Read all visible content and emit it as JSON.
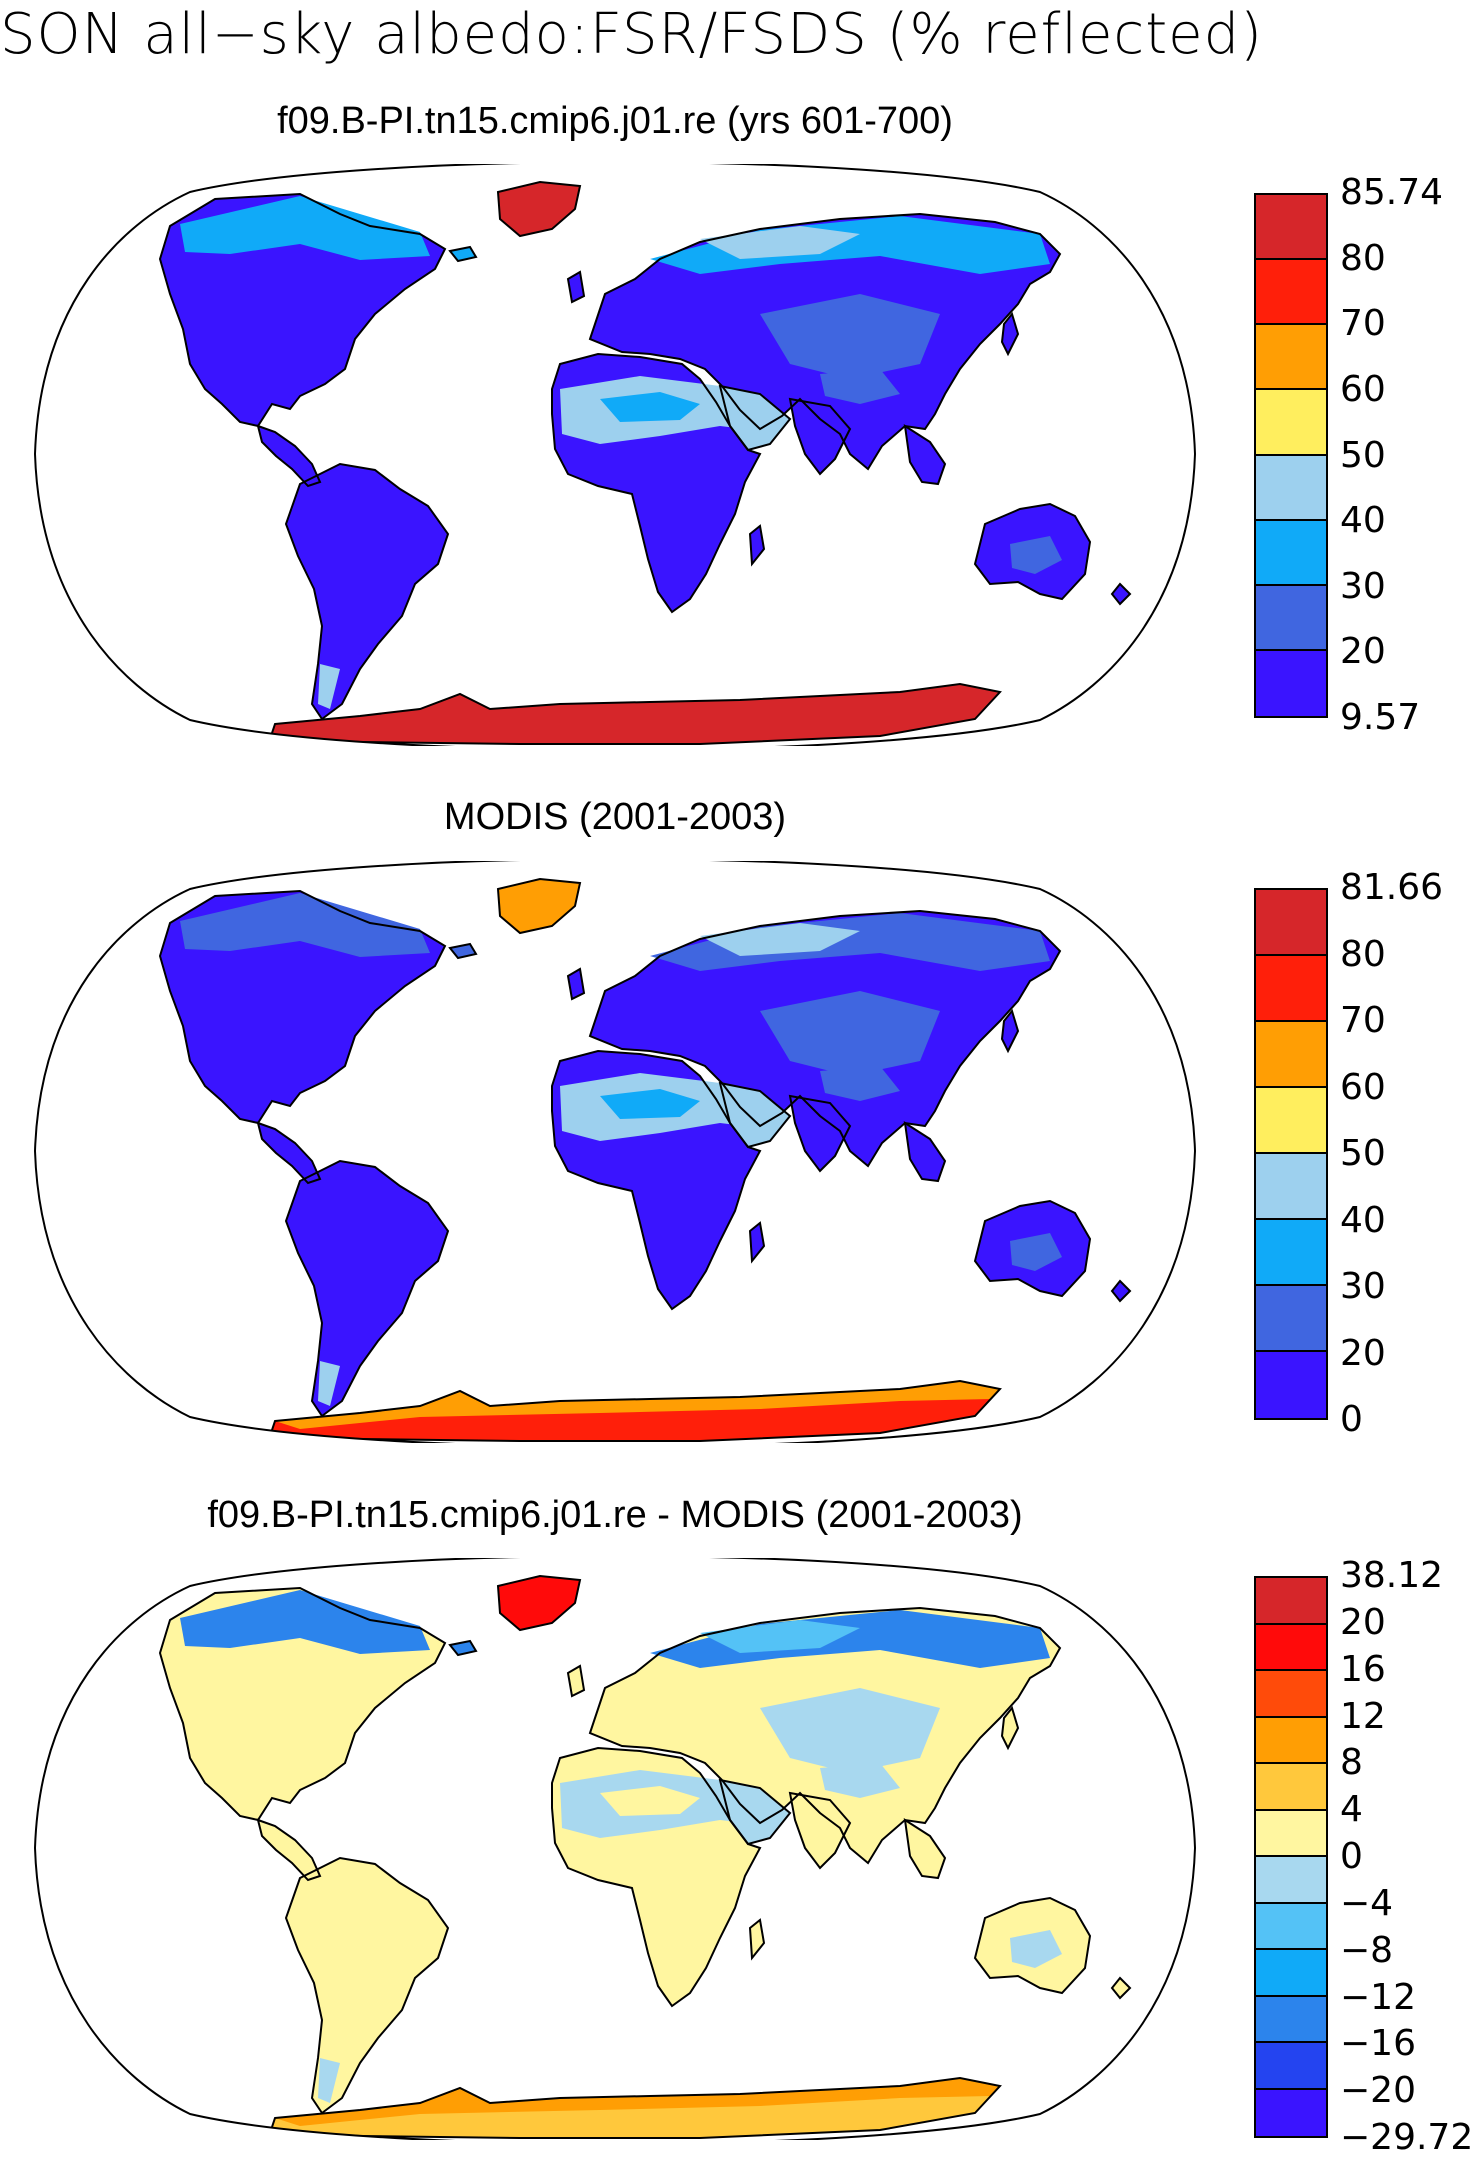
{
  "figure": {
    "title": "SON all−sky albedo:FSR/FSDS (% reflected)"
  },
  "panels": [
    {
      "title": "f09.B-PI.tn15.cmip6.j01.re (yrs 601-700)",
      "colorbar": {
        "labels": [
          "85.74",
          "80",
          "70",
          "60",
          "50",
          "40",
          "30",
          "20",
          "9.57"
        ],
        "colors": [
          "#d6262a",
          "#ff1f0a",
          "#ff9e04",
          "#ffee5e",
          "#9dd0ee",
          "#10aaf8",
          "#4066e0",
          "#3a14ff"
        ]
      },
      "palette": {
        "land": "#3a14ff",
        "land2": "#4066e0",
        "desert": "#9dd0ee",
        "desert2": "#10aaf8",
        "arctic": "#10aaf8",
        "arctic2": "#9dd0ee",
        "greenland": "#d6262a",
        "antarctica": "#d6262a",
        "ice_edge": "#d6262a"
      }
    },
    {
      "title": "MODIS (2001-2003)",
      "colorbar": {
        "labels": [
          "81.66",
          "80",
          "70",
          "60",
          "50",
          "40",
          "30",
          "20",
          "0"
        ],
        "colors": [
          "#d6262a",
          "#ff1f0a",
          "#ff9e04",
          "#ffee5e",
          "#9dd0ee",
          "#10aaf8",
          "#4066e0",
          "#3a14ff"
        ]
      },
      "palette": {
        "land": "#3a14ff",
        "land2": "#4066e0",
        "desert": "#9dd0ee",
        "desert2": "#10aaf8",
        "arctic": "#4066e0",
        "arctic2": "#9dd0ee",
        "greenland": "#ff9e04",
        "antarctica": "#ff1f0a",
        "ice_edge": "#ff9e04"
      }
    },
    {
      "title": "f09.B-PI.tn15.cmip6.j01.re - MODIS (2001-2003)",
      "colorbar": {
        "labels": [
          "38.12",
          "20",
          "16",
          "12",
          "8",
          "4",
          "0",
          "−4",
          "−8",
          "−12",
          "−16",
          "−20",
          "−29.72"
        ],
        "colors": [
          "#d6262a",
          "#ff0a0a",
          "#ff4b0a",
          "#ff9e04",
          "#ffc83c",
          "#fff6a0",
          "#a8d8ef",
          "#54c2f6",
          "#10aaf8",
          "#2c84ec",
          "#2444f0",
          "#3a14ff"
        ]
      },
      "palette": {
        "land": "#fff6a0",
        "land2": "#a8d8ef",
        "desert": "#a8d8ef",
        "desert2": "#fff6a0",
        "arctic": "#2c84ec",
        "arctic2": "#54c2f6",
        "greenland": "#ff0a0a",
        "antarctica": "#ffc83c",
        "ice_edge": "#ff9e04"
      }
    }
  ]
}
